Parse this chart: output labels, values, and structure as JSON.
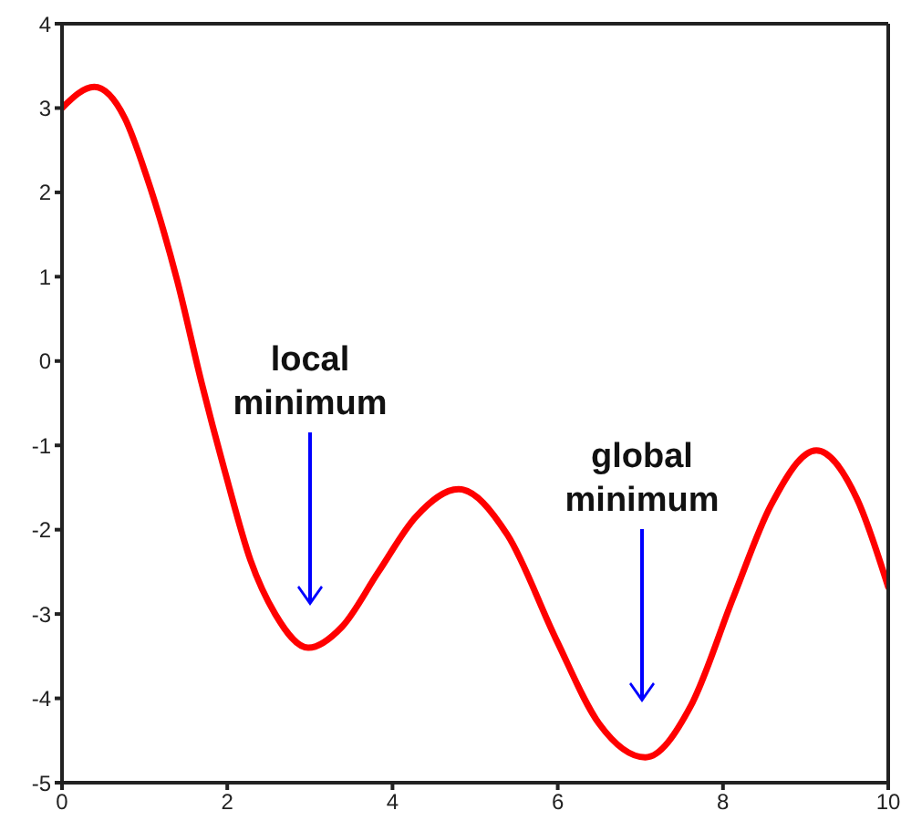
{
  "chart_data": {
    "type": "line",
    "x": [
      0,
      0.39,
      0.76,
      1.02,
      1.39,
      1.69,
      1.98,
      2.28,
      2.58,
      2.98,
      3.39,
      3.83,
      4.28,
      4.8,
      5.39,
      5.98,
      6.5,
      7.06,
      7.61,
      8.13,
      8.58,
      9.13,
      9.62,
      10
    ],
    "series": [
      {
        "color": "#ff0000",
        "values": [
          3.0,
          3.25,
          2.88,
          2.2,
          0.97,
          -0.26,
          -1.34,
          -2.36,
          -3.0,
          -3.4,
          -3.15,
          -2.5,
          -1.85,
          -1.52,
          -2.06,
          -3.3,
          -4.3,
          -4.7,
          -4.09,
          -2.79,
          -1.71,
          -1.06,
          -1.63,
          -2.68
        ]
      }
    ],
    "xlim": [
      0,
      10
    ],
    "xticks": [
      0,
      2,
      4,
      6,
      8,
      10
    ],
    "ylim": [
      -5,
      4
    ],
    "yticks": [
      -5,
      -4,
      -3,
      -2,
      -1,
      0,
      1,
      2,
      3,
      4
    ],
    "grid": false,
    "marker": "none",
    "line_style": "solid",
    "annotations": [
      "local minimum",
      "global minimum"
    ]
  }
}
